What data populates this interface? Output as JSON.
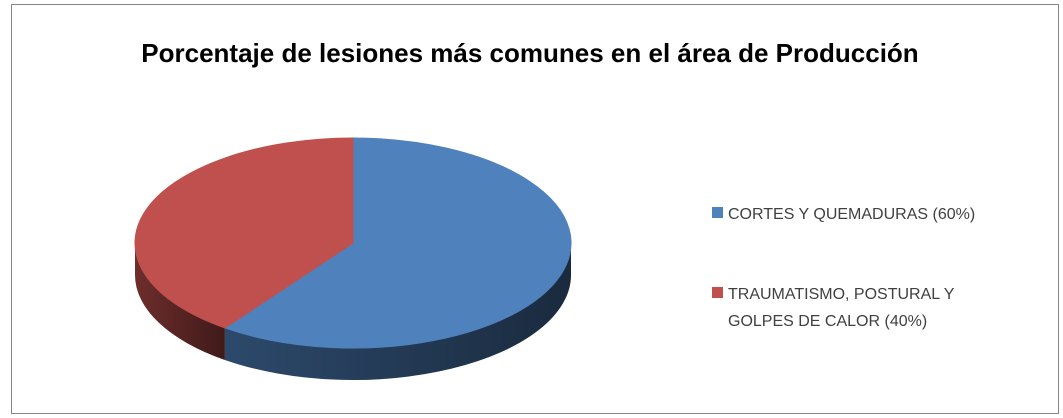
{
  "chart_data": {
    "type": "pie3d",
    "title": "Porcentaje de lesiones más comunes en el área de Producción",
    "categories": [
      "CORTES Y QUEMADURAS (60%)",
      "TRAUMATISMO, POSTURAL Y GOLPES DE CALOR (40%)"
    ],
    "values": [
      60,
      40
    ],
    "colors": [
      "#4f81bd",
      "#c0504d"
    ],
    "legend": "right"
  }
}
